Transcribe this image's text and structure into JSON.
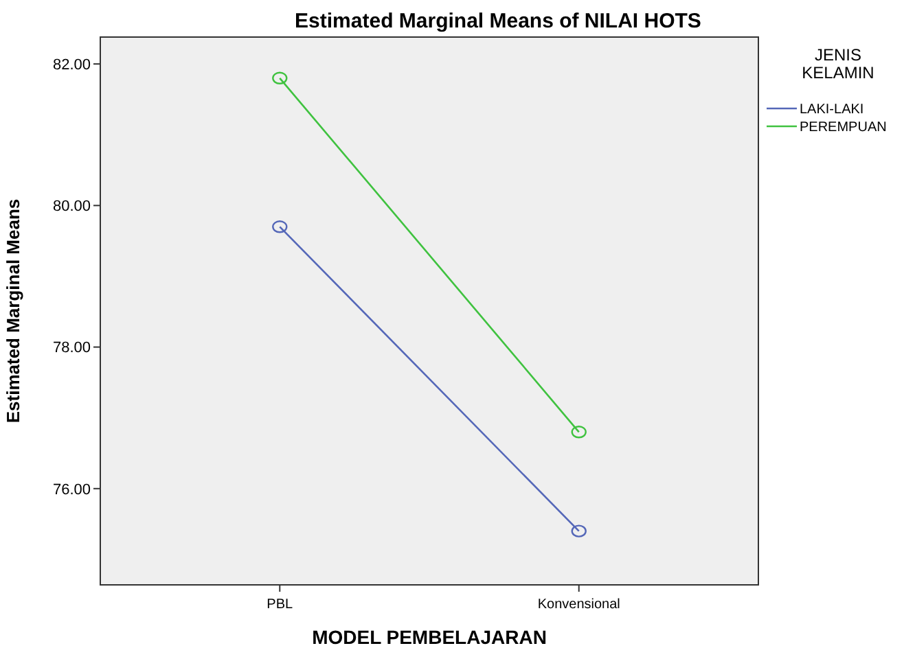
{
  "chart_data": {
    "type": "line",
    "title": "Estimated Marginal Means of NILAI HOTS",
    "xlabel": "MODEL PEMBELAJARAN",
    "ylabel": "Estimated Marginal Means",
    "legend_title": "JENIS KELAMIN",
    "categories": [
      "PBL",
      "Konvensional"
    ],
    "series": [
      {
        "name": "LAKI-LAKI",
        "color": "#5467b8",
        "values": [
          79.7,
          75.4
        ]
      },
      {
        "name": "PEREMPUAN",
        "color": "#3fc23f",
        "values": [
          81.8,
          76.8
        ]
      }
    ],
    "ylim": [
      74.64,
      82.38
    ],
    "yticks": [
      {
        "value": 76,
        "label": "76.00"
      },
      {
        "value": 78,
        "label": "78.00"
      },
      {
        "value": 80,
        "label": "80.00"
      },
      {
        "value": 82,
        "label": "82.00"
      }
    ],
    "grid": false,
    "legend": "right",
    "marker": "circle",
    "line_style": "solid"
  }
}
